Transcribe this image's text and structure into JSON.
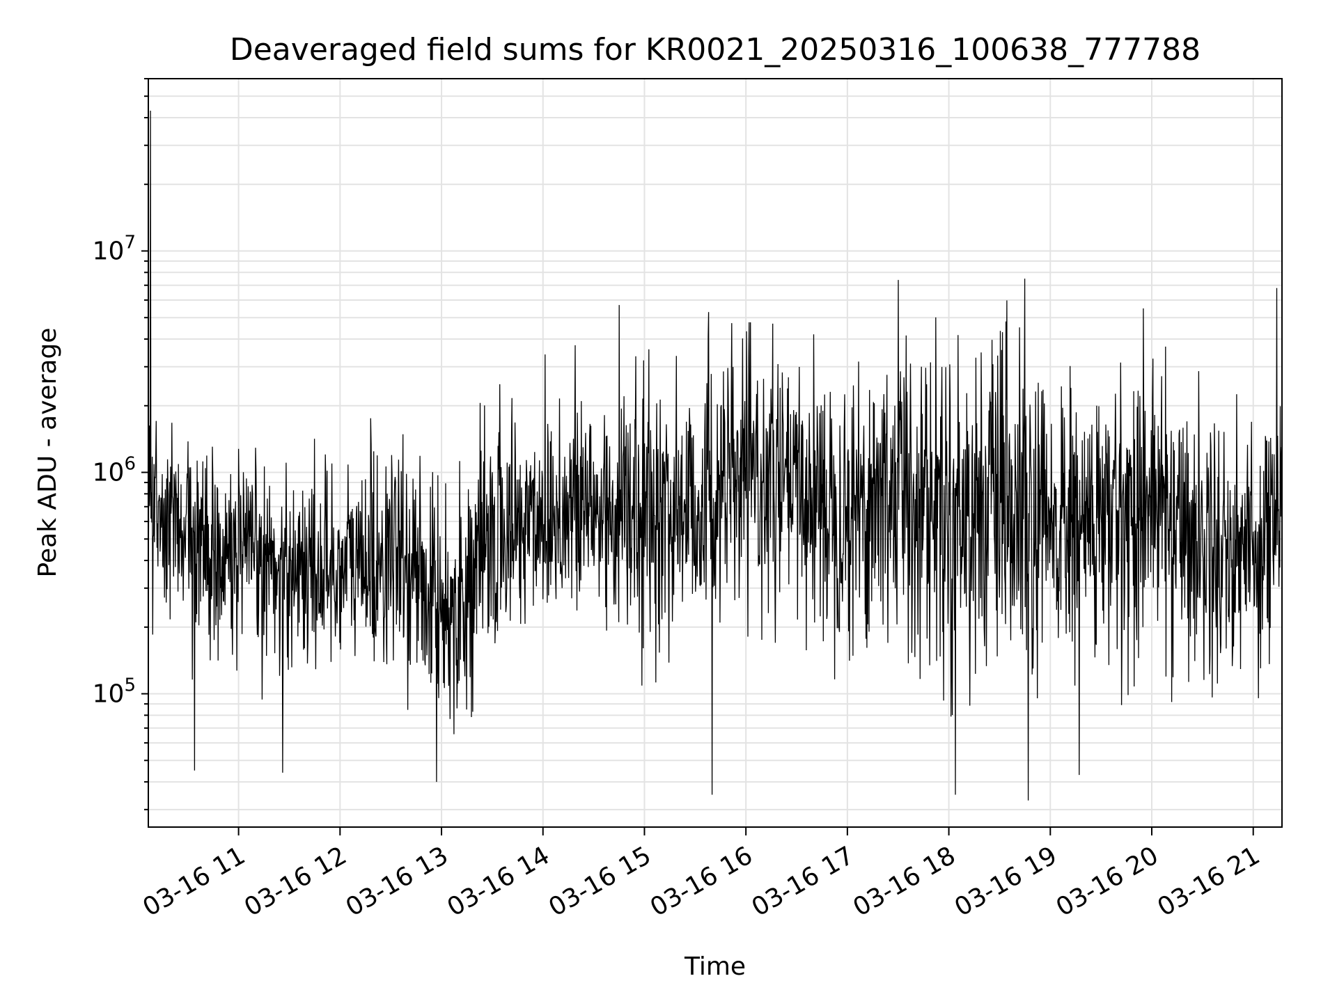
{
  "chart_data": {
    "type": "line",
    "title": "Deaveraged field sums for KR0021_20250316_100638_777788",
    "xlabel": "Time",
    "ylabel": "Peak ADU - average",
    "x_range": [
      "2025-03-16 10:06:38",
      "2025-03-16 21:17:00"
    ],
    "x_ticks": [
      "03-16 11",
      "03-16 12",
      "03-16 13",
      "03-16 14",
      "03-16 15",
      "03-16 16",
      "03-16 17",
      "03-16 18",
      "03-16 19",
      "03-16 20",
      "03-16 21"
    ],
    "y_scale": "log",
    "ylim": [
      25000,
      60000000
    ],
    "y_ticks": [
      {
        "base": "10",
        "exp": "5",
        "value": 100000
      },
      {
        "base": "10",
        "exp": "6",
        "value": 1000000
      },
      {
        "base": "10",
        "exp": "7",
        "value": 10000000
      }
    ],
    "grid": true,
    "line_color": "#000000",
    "series": [
      {
        "x": [
          "10:07",
          "10:30",
          "11:00",
          "11:30",
          "12:00",
          "12:30",
          "12:55",
          "13:05",
          "13:30",
          "14:00",
          "14:30",
          "15:00",
          "15:30",
          "16:00",
          "16:30",
          "17:00",
          "17:30",
          "18:00",
          "18:30",
          "18:50",
          "19:00",
          "19:30",
          "20:00",
          "20:30",
          "21:00",
          "21:15"
        ],
        "median": [
          700000,
          550000,
          420000,
          380000,
          360000,
          400000,
          320000,
          230000,
          450000,
          650000,
          650000,
          600000,
          700000,
          950000,
          800000,
          700000,
          900000,
          700000,
          700000,
          450000,
          550000,
          600000,
          800000,
          500000,
          450000,
          650000
        ],
        "high": [
          1500000,
          1300000,
          1100000,
          1000000,
          1200000,
          1500000,
          800000,
          700000,
          2000000,
          2500000,
          3000000,
          2500000,
          3200000,
          3500000,
          3300000,
          3000000,
          4500000,
          3500000,
          4000000,
          3500000,
          2500000,
          2500000,
          3000000,
          2000000,
          1800000,
          2200000
        ],
        "low": [
          250000,
          150000,
          120000,
          130000,
          130000,
          130000,
          90000,
          70000,
          150000,
          200000,
          180000,
          150000,
          180000,
          250000,
          220000,
          150000,
          130000,
          120000,
          120000,
          80000,
          120000,
          120000,
          150000,
          110000,
          100000,
          200000
        ]
      }
    ],
    "spikes": [
      {
        "x": "10:08",
        "y": 43000000
      },
      {
        "x": "10:34",
        "y": 45000
      },
      {
        "x": "11:26",
        "y": 44000
      },
      {
        "x": "12:57",
        "y": 40000
      },
      {
        "x": "14:45",
        "y": 5700000
      },
      {
        "x": "15:38",
        "y": 5300000
      },
      {
        "x": "15:40",
        "y": 35000
      },
      {
        "x": "17:30",
        "y": 7400000
      },
      {
        "x": "18:04",
        "y": 35000
      },
      {
        "x": "18:45",
        "y": 7500000
      },
      {
        "x": "18:47",
        "y": 33000
      },
      {
        "x": "19:17",
        "y": 43000
      },
      {
        "x": "19:55",
        "y": 5500000
      },
      {
        "x": "21:14",
        "y": 6800000
      }
    ]
  }
}
